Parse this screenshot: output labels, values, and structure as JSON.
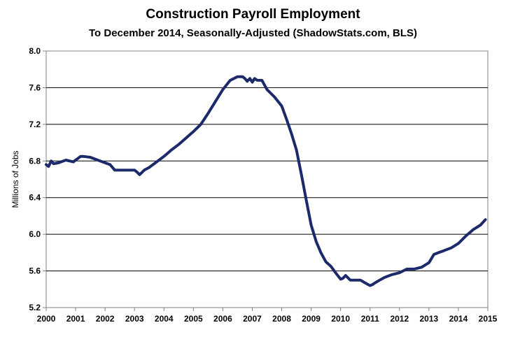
{
  "chart_data": {
    "type": "line",
    "title": "Construction Payroll Employment",
    "subtitle": "To December 2014, Seasonally-Adjusted (ShadowStats.com, BLS)",
    "xlabel": "",
    "ylabel": "Millions of Jobs",
    "xlim": [
      2000,
      2015
    ],
    "ylim": [
      5.2,
      8.0
    ],
    "x_ticks": [
      "2000",
      "2001",
      "2002",
      "2003",
      "2004",
      "2005",
      "2006",
      "2007",
      "2008",
      "2009",
      "2010",
      "2011",
      "2012",
      "2013",
      "2014",
      "2015"
    ],
    "y_ticks": [
      "5.2",
      "5.6",
      "6.0",
      "6.4",
      "6.8",
      "7.2",
      "7.6",
      "8.0"
    ],
    "grid": true,
    "line_color": "#1c2a6b",
    "series": [
      {
        "x": [
          2000.0,
          2000.08,
          2000.17,
          2000.25,
          2000.42,
          2000.67,
          2000.92,
          2001.0,
          2001.17,
          2001.25,
          2001.5,
          2001.75,
          2002.0,
          2002.17,
          2002.33,
          2002.5,
          2002.67,
          2002.83,
          2003.0,
          2003.08,
          2003.17,
          2003.33,
          2003.5,
          2003.75,
          2004.0,
          2004.25,
          2004.5,
          2004.75,
          2005.0,
          2005.25,
          2005.5,
          2005.75,
          2006.0,
          2006.25,
          2006.5,
          2006.67,
          2006.75,
          2006.83,
          2006.92,
          2007.0,
          2007.08,
          2007.17,
          2007.33,
          2007.5,
          2007.75,
          2008.0,
          2008.17,
          2008.33,
          2008.5,
          2008.67,
          2008.83,
          2009.0,
          2009.17,
          2009.33,
          2009.5,
          2009.67,
          2009.83,
          2010.0,
          2010.08,
          2010.17,
          2010.33,
          2010.5,
          2010.67,
          2010.83,
          2011.0,
          2011.08,
          2011.17,
          2011.33,
          2011.5,
          2011.75,
          2012.0,
          2012.25,
          2012.5,
          2012.75,
          2013.0,
          2013.17,
          2013.33,
          2013.5,
          2013.75,
          2014.0,
          2014.25,
          2014.5,
          2014.75,
          2014.92
        ],
        "values": [
          6.76,
          6.74,
          6.8,
          6.77,
          6.78,
          6.81,
          6.79,
          6.81,
          6.85,
          6.85,
          6.84,
          6.81,
          6.78,
          6.76,
          6.7,
          6.7,
          6.7,
          6.7,
          6.7,
          6.68,
          6.65,
          6.7,
          6.73,
          6.79,
          6.85,
          6.92,
          6.98,
          7.05,
          7.12,
          7.2,
          7.32,
          7.45,
          7.58,
          7.68,
          7.72,
          7.72,
          7.7,
          7.67,
          7.7,
          7.66,
          7.7,
          7.68,
          7.68,
          7.58,
          7.5,
          7.4,
          7.25,
          7.1,
          6.92,
          6.65,
          6.38,
          6.1,
          5.92,
          5.8,
          5.7,
          5.65,
          5.58,
          5.51,
          5.52,
          5.55,
          5.5,
          5.5,
          5.5,
          5.47,
          5.44,
          5.45,
          5.47,
          5.5,
          5.53,
          5.56,
          5.58,
          5.62,
          5.62,
          5.64,
          5.69,
          5.78,
          5.8,
          5.82,
          5.85,
          5.9,
          5.98,
          6.05,
          6.1,
          6.16
        ]
      }
    ]
  }
}
